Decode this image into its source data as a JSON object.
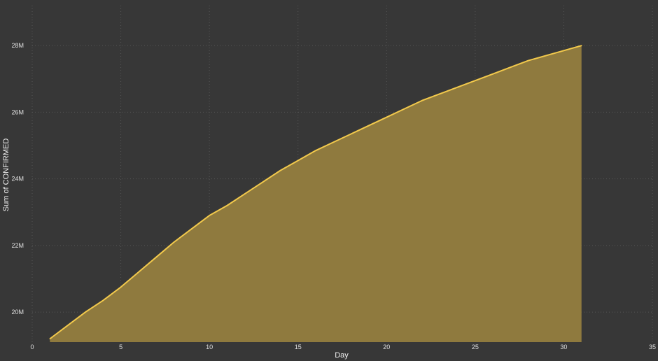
{
  "chart_data": {
    "type": "area",
    "xlabel": "Day",
    "ylabel": "Sum of CONFIRMED",
    "xlim": [
      0,
      35
    ],
    "ylim": [
      19.1,
      29.2
    ],
    "xticks": [
      0,
      5,
      10,
      15,
      20,
      25,
      30,
      35
    ],
    "xtick_labels": [
      "0",
      "5",
      "10",
      "15",
      "20",
      "25",
      "30",
      "35"
    ],
    "yticks": [
      20,
      22,
      24,
      26,
      28
    ],
    "ytick_labels": [
      "20M",
      "22M",
      "24M",
      "26M",
      "28M"
    ],
    "grid": true,
    "legend": "none",
    "series": [
      {
        "x": [
          1,
          2,
          3,
          4,
          5,
          6,
          7,
          8,
          9,
          10,
          11,
          12,
          13,
          14,
          15,
          16,
          17,
          18,
          19,
          20,
          21,
          22,
          23,
          24,
          25,
          26,
          27,
          28,
          29,
          30,
          31
        ],
        "values": [
          19.2,
          19.6,
          20.0,
          20.35,
          20.75,
          21.2,
          21.65,
          22.1,
          22.5,
          22.9,
          23.2,
          23.55,
          23.9,
          24.25,
          24.55,
          24.85,
          25.1,
          25.35,
          25.6,
          25.85,
          26.1,
          26.35,
          26.55,
          26.75,
          26.95,
          27.15,
          27.35,
          27.55,
          27.7,
          27.85,
          28.0
        ],
        "line_color": "#f2c94c",
        "fill_color": "#8f7a3e"
      }
    ],
    "units": "M"
  }
}
